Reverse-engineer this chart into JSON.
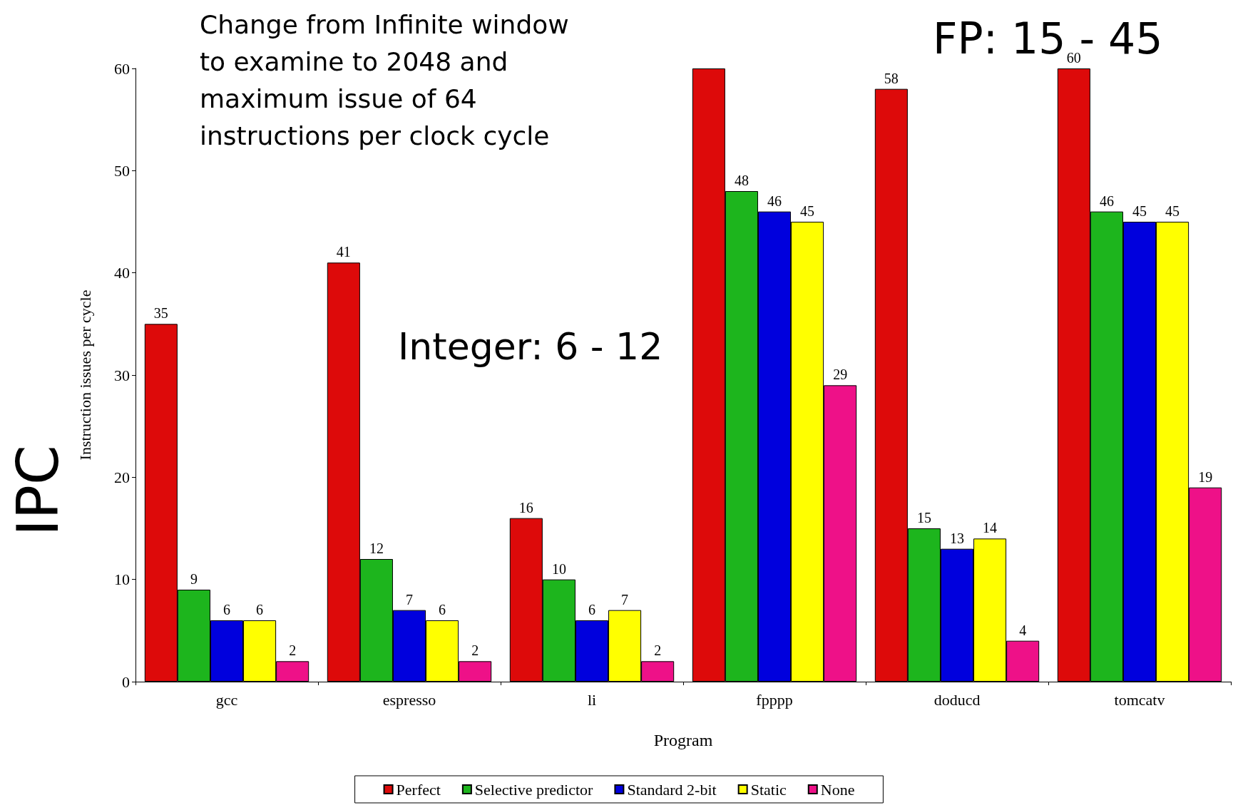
{
  "chart_data": {
    "type": "bar",
    "xlabel": "Program",
    "ylabel": "Instruction issues per cycle",
    "annotations": [
      "Change from Infinite window to examine to 2048 and maximum issue of 64 instructions per clock cycle",
      "Integer: 6 - 12",
      "FP: 15 - 45",
      "IPC"
    ],
    "categories": [
      "gcc",
      "espresso",
      "li",
      "fpppp",
      "doducd",
      "tomcatv"
    ],
    "series": [
      {
        "name": "Perfect",
        "color": "#dd0a0a",
        "values": [
          35,
          41,
          16,
          60,
          58,
          60
        ],
        "value_labels": [
          "35",
          "41",
          "16",
          null,
          "58",
          "60"
        ]
      },
      {
        "name": "Selective predictor",
        "color": "#1db51d",
        "values": [
          9,
          12,
          10,
          48,
          15,
          46
        ],
        "value_labels": [
          "9",
          "12",
          "10",
          "48",
          "15",
          "46"
        ]
      },
      {
        "name": "Standard 2-bit",
        "color": "#0000dd",
        "values": [
          6,
          7,
          6,
          46,
          13,
          45
        ],
        "value_labels": [
          "6",
          "7",
          "6",
          "46",
          "13",
          "45"
        ]
      },
      {
        "name": "Static",
        "color": "#ffff00",
        "values": [
          6,
          6,
          7,
          45,
          14,
          45
        ],
        "value_labels": [
          "6",
          "6",
          "7",
          "45",
          "14",
          "45"
        ]
      },
      {
        "name": "None",
        "color": "#ee1188",
        "values": [
          2,
          2,
          2,
          29,
          4,
          19
        ],
        "value_labels": [
          "2",
          "2",
          "2",
          "29",
          "4",
          "19"
        ]
      }
    ],
    "ylim": [
      0,
      60
    ],
    "yticks": [
      0,
      10,
      20,
      30,
      40,
      50,
      60
    ],
    "grid": false,
    "legend": "bottom"
  }
}
